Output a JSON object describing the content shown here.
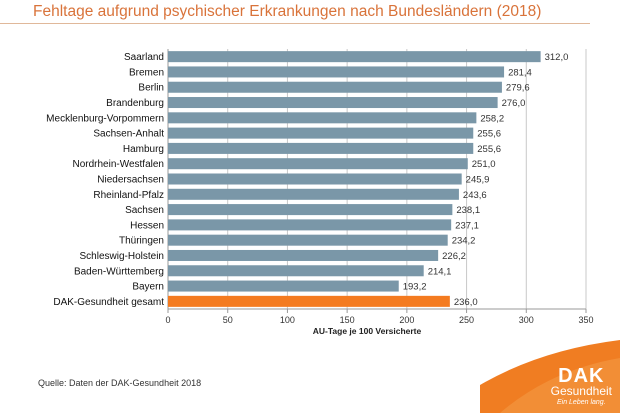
{
  "title": "Fehltage aufgrund psychischer Erkrankungen nach Bundesländern (2018)",
  "source": "Quelle: Daten der DAK-Gesundheit 2018",
  "logo": {
    "brand": "DAK",
    "sub": "Gesundheit",
    "slogan": "Ein Leben lang."
  },
  "colors": {
    "bar": "#7a97a8",
    "highlight": "#f47b20",
    "title": "#d9733a"
  },
  "chart_data": {
    "type": "bar",
    "orientation": "horizontal",
    "categories": [
      "Saarland",
      "Bremen",
      "Berlin",
      "Brandenburg",
      "Mecklenburg-Vorpommern",
      "Sachsen-Anhalt",
      "Hamburg",
      "Nordrhein-Westfalen",
      "Niedersachsen",
      "Rheinland-Pfalz",
      "Sachsen",
      "Hessen",
      "Thüringen",
      "Schleswig-Holstein",
      "Baden-Württemberg",
      "Bayern",
      "DAK-Gesundheit gesamt"
    ],
    "values": [
      312.0,
      281.4,
      279.6,
      276.0,
      258.2,
      255.6,
      255.6,
      251.0,
      245.9,
      243.6,
      238.1,
      237.1,
      234.2,
      226.2,
      214.1,
      193.2,
      236.0
    ],
    "labels": [
      "312,0",
      "281,4",
      "279,6",
      "276,0",
      "258,2",
      "255,6",
      "255,6",
      "251,0",
      "245,9",
      "243,6",
      "238,1",
      "237,1",
      "234,2",
      "226,2",
      "214,1",
      "193,2",
      "236,0"
    ],
    "highlight": "DAK-Gesundheit gesamt",
    "xlabel": "AU-Tage je 100 Versicherte",
    "xlim": [
      0,
      350
    ],
    "xticks": [
      0,
      50,
      100,
      150,
      200,
      250,
      300,
      350
    ],
    "grid": true
  }
}
